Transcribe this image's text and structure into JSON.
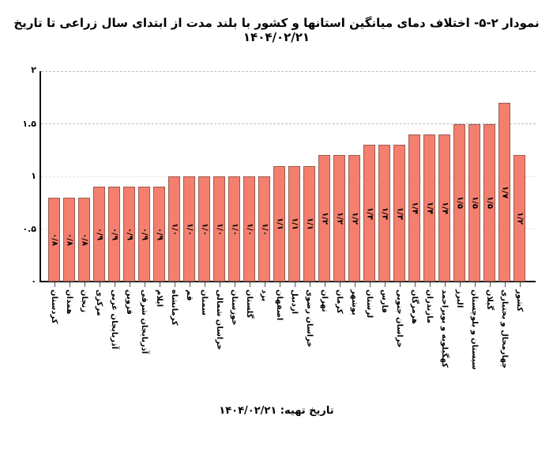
{
  "title": "نمودار ۲-۵- اختلاف دمای میانگین استانها و کشور با بلند مدت از ابتدای سال زراعی تا تاریخ ۱۴۰۴/۰۲/۲۱",
  "footer": "تاریخ تهیه:  ۱۴۰۴/۰۲/۲۱",
  "colors": {
    "bar": "#f47f6e",
    "bar_border": "#9a5a50",
    "grid": "#bdbdbd"
  },
  "yticks": [
    "۰",
    "۰.۵",
    "۱",
    "۱.۵",
    "۲"
  ],
  "chart_data": {
    "type": "bar",
    "title": "نمودار ۲-۵- اختلاف دمای میانگین استانها و کشور با بلند مدت از ابتدای سال زراعی تا تاریخ ۱۴۰۴/۰۲/۲۱",
    "xlabel": "",
    "ylabel": "",
    "ylim": [
      0,
      2
    ],
    "yticks": [
      0,
      0.5,
      1,
      1.5,
      2
    ],
    "grid": true,
    "legend": null,
    "categories": [
      "کردستان",
      "همدان",
      "زنجان",
      "مرکزی",
      "آذربایجان غربی",
      "قزوین",
      "آذربایجان شرقی",
      "ایلام",
      "کرمانشاه",
      "قم",
      "سمنان",
      "خراسان شمالی",
      "خوزستان",
      "گلستان",
      "یزد",
      "اصفهان",
      "اردبیل",
      "خراسان رضوی",
      "تهران",
      "کرمان",
      "بوشهر",
      "لرستان",
      "فارس",
      "خراسان جنوبی",
      "هرمزگان",
      "مازندران",
      "کهگیلویه و بویراحمد",
      "البرز",
      "سیستان و بلوچستان",
      "گیلان",
      "چهارمحال و بختیاری",
      "کشور"
    ],
    "values": [
      0.8,
      0.8,
      0.8,
      0.9,
      0.9,
      0.9,
      0.9,
      0.9,
      1.0,
      1.0,
      1.0,
      1.0,
      1.0,
      1.0,
      1.0,
      1.1,
      1.1,
      1.1,
      1.2,
      1.2,
      1.2,
      1.3,
      1.3,
      1.3,
      1.4,
      1.4,
      1.4,
      1.5,
      1.5,
      1.5,
      1.7,
      1.2
    ],
    "data_labels": [
      "۰/۸",
      "۰/۸",
      "۰/۸",
      "۰/۹",
      "۰/۹",
      "۰/۹",
      "۰/۹",
      "۰/۹",
      "۱/۰",
      "۱/۰",
      "۱/۰",
      "۱/۰",
      "۱/۰",
      "۱/۰",
      "۱/۰",
      "۱/۱",
      "۱/۱",
      "۱/۱",
      "۱/۲",
      "۱/۲",
      "۱/۲",
      "۱/۳",
      "۱/۳",
      "۱/۳",
      "۱/۴",
      "۱/۴",
      "۱/۴",
      "۱/۵",
      "۱/۵",
      "۱/۵",
      "۱/۷",
      "۱/۲"
    ]
  }
}
